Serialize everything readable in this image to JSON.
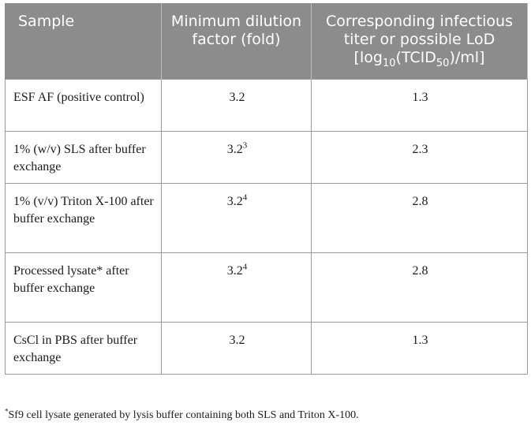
{
  "table": {
    "headers": {
      "sample": "Sample",
      "dilution": "Minimum dilution factor (fold)",
      "titer_main": "Corresponding infectious titer or possible LoD [log",
      "titer_sub1": "10",
      "titer_mid": "(TCID",
      "titer_sub2": "50",
      "titer_end": ")/ml]"
    },
    "rows": [
      {
        "sample": "ESF AF (positive control)",
        "dilution": "3.2",
        "dilution_sup": "",
        "titer": "1.3"
      },
      {
        "sample": "1% (w/v) SLS after buffer exchange",
        "dilution": "3.2",
        "dilution_sup": "3",
        "titer": "2.3"
      },
      {
        "sample": "1% (v/v) Triton X-100 after buffer exchange",
        "dilution": "3.2",
        "dilution_sup": "4",
        "titer": "2.8"
      },
      {
        "sample": "Processed lysate* after buffer exchange",
        "dilution": "3.2",
        "dilution_sup": "4",
        "titer": "2.8"
      },
      {
        "sample": "CsCl in PBS after buffer exchange",
        "dilution": "3.2",
        "dilution_sup": "",
        "titer": "1.3"
      }
    ]
  },
  "footnote": {
    "marker": "*",
    "text": "Sf9 cell lysate generated by lysis buffer containing both SLS and Triton X-100."
  }
}
